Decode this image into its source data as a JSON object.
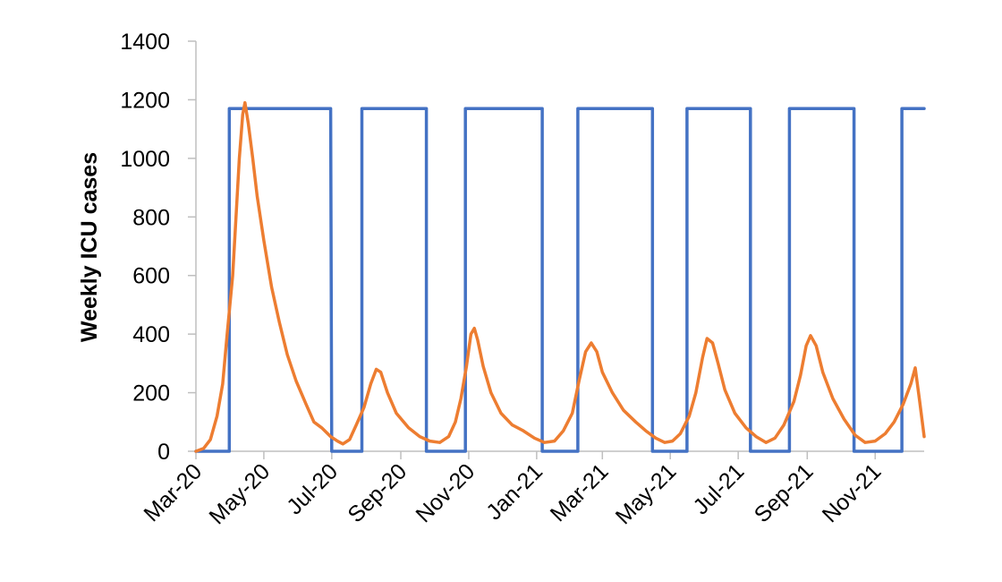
{
  "chart_data": {
    "type": "line",
    "title": "",
    "xlabel": "",
    "ylabel": "Weekly ICU cases",
    "ylim": [
      0,
      1400
    ],
    "yticks": [
      0,
      200,
      400,
      600,
      800,
      1000,
      1200,
      1400
    ],
    "xlim": [
      "2020-03-01",
      "2021-12-15"
    ],
    "xticks": [
      {
        "date": "2020-03-01",
        "label": "Mar-20"
      },
      {
        "date": "2020-05-01",
        "label": "May-20"
      },
      {
        "date": "2020-07-01",
        "label": "Jul-20"
      },
      {
        "date": "2020-09-01",
        "label": "Sep-20"
      },
      {
        "date": "2020-11-01",
        "label": "Nov-20"
      },
      {
        "date": "2021-01-01",
        "label": "Jan-21"
      },
      {
        "date": "2021-03-01",
        "label": "Mar-21"
      },
      {
        "date": "2021-05-01",
        "label": "May-21"
      },
      {
        "date": "2021-07-01",
        "label": "Jul-21"
      },
      {
        "date": "2021-09-01",
        "label": "Sep-21"
      },
      {
        "date": "2021-11-01",
        "label": "Nov-21"
      }
    ],
    "grid": false,
    "legend": "none",
    "series": [
      {
        "color": "#4472C4",
        "style": "step",
        "points": [
          [
            "2020-03-01",
            0
          ],
          [
            "2020-03-31",
            0
          ],
          [
            "2020-03-31",
            1170
          ],
          [
            "2020-06-30",
            1170
          ],
          [
            "2020-07-01",
            0
          ],
          [
            "2020-07-28",
            0
          ],
          [
            "2020-07-28",
            1170
          ],
          [
            "2020-09-24",
            1170
          ],
          [
            "2020-09-24",
            0
          ],
          [
            "2020-10-29",
            0
          ],
          [
            "2020-10-29",
            1170
          ],
          [
            "2021-01-06",
            1170
          ],
          [
            "2021-01-06",
            0
          ],
          [
            "2021-02-07",
            0
          ],
          [
            "2021-02-07",
            1170
          ],
          [
            "2021-04-15",
            1170
          ],
          [
            "2021-04-15",
            0
          ],
          [
            "2021-05-16",
            0
          ],
          [
            "2021-05-16",
            1170
          ],
          [
            "2021-07-12",
            1170
          ],
          [
            "2021-07-12",
            0
          ],
          [
            "2021-08-16",
            0
          ],
          [
            "2021-08-16",
            1170
          ],
          [
            "2021-10-13",
            1170
          ],
          [
            "2021-10-13",
            0
          ],
          [
            "2021-11-25",
            0
          ],
          [
            "2021-11-25",
            1170
          ],
          [
            "2021-12-15",
            1170
          ]
        ]
      },
      {
        "color": "#ED7D31",
        "style": "line",
        "points": [
          [
            "2020-03-01",
            0
          ],
          [
            "2020-03-08",
            10
          ],
          [
            "2020-03-14",
            40
          ],
          [
            "2020-03-20",
            120
          ],
          [
            "2020-03-25",
            230
          ],
          [
            "2020-03-29",
            400
          ],
          [
            "2020-04-03",
            600
          ],
          [
            "2020-04-06",
            800
          ],
          [
            "2020-04-09",
            1000
          ],
          [
            "2020-04-12",
            1150
          ],
          [
            "2020-04-14",
            1190
          ],
          [
            "2020-04-17",
            1120
          ],
          [
            "2020-04-21",
            1000
          ],
          [
            "2020-04-25",
            870
          ],
          [
            "2020-05-01",
            720
          ],
          [
            "2020-05-08",
            560
          ],
          [
            "2020-05-15",
            440
          ],
          [
            "2020-05-22",
            330
          ],
          [
            "2020-05-30",
            240
          ],
          [
            "2020-06-08",
            160
          ],
          [
            "2020-06-15",
            100
          ],
          [
            "2020-06-22",
            80
          ],
          [
            "2020-06-30",
            50
          ],
          [
            "2020-07-06",
            35
          ],
          [
            "2020-07-11",
            25
          ],
          [
            "2020-07-17",
            40
          ],
          [
            "2020-07-23",
            90
          ],
          [
            "2020-07-30",
            150
          ],
          [
            "2020-08-05",
            230
          ],
          [
            "2020-08-10",
            280
          ],
          [
            "2020-08-14",
            270
          ],
          [
            "2020-08-20",
            200
          ],
          [
            "2020-08-28",
            130
          ],
          [
            "2020-09-08",
            80
          ],
          [
            "2020-09-18",
            50
          ],
          [
            "2020-09-27",
            35
          ],
          [
            "2020-10-06",
            30
          ],
          [
            "2020-10-14",
            50
          ],
          [
            "2020-10-20",
            100
          ],
          [
            "2020-10-25",
            180
          ],
          [
            "2020-10-30",
            290
          ],
          [
            "2020-11-03",
            400
          ],
          [
            "2020-11-06",
            420
          ],
          [
            "2020-11-09",
            380
          ],
          [
            "2020-11-14",
            290
          ],
          [
            "2020-11-21",
            200
          ],
          [
            "2020-11-30",
            130
          ],
          [
            "2020-12-10",
            90
          ],
          [
            "2020-12-20",
            70
          ],
          [
            "2020-12-30",
            45
          ],
          [
            "2021-01-08",
            30
          ],
          [
            "2021-01-17",
            35
          ],
          [
            "2021-01-25",
            70
          ],
          [
            "2021-02-02",
            130
          ],
          [
            "2021-02-08",
            240
          ],
          [
            "2021-02-14",
            340
          ],
          [
            "2021-02-19",
            370
          ],
          [
            "2021-02-24",
            340
          ],
          [
            "2021-03-01",
            270
          ],
          [
            "2021-03-10",
            200
          ],
          [
            "2021-03-20",
            140
          ],
          [
            "2021-03-31",
            100
          ],
          [
            "2021-04-09",
            70
          ],
          [
            "2021-04-18",
            45
          ],
          [
            "2021-04-26",
            30
          ],
          [
            "2021-05-03",
            35
          ],
          [
            "2021-05-10",
            60
          ],
          [
            "2021-05-18",
            120
          ],
          [
            "2021-05-24",
            200
          ],
          [
            "2021-05-30",
            320
          ],
          [
            "2021-06-03",
            385
          ],
          [
            "2021-06-08",
            370
          ],
          [
            "2021-06-13",
            300
          ],
          [
            "2021-06-19",
            210
          ],
          [
            "2021-06-28",
            130
          ],
          [
            "2021-07-08",
            80
          ],
          [
            "2021-07-17",
            50
          ],
          [
            "2021-07-26",
            30
          ],
          [
            "2021-08-03",
            45
          ],
          [
            "2021-08-11",
            90
          ],
          [
            "2021-08-20",
            170
          ],
          [
            "2021-08-26",
            260
          ],
          [
            "2021-08-31",
            360
          ],
          [
            "2021-09-04",
            395
          ],
          [
            "2021-09-09",
            360
          ],
          [
            "2021-09-15",
            270
          ],
          [
            "2021-09-24",
            180
          ],
          [
            "2021-10-04",
            110
          ],
          [
            "2021-10-14",
            55
          ],
          [
            "2021-10-23",
            30
          ],
          [
            "2021-11-01",
            35
          ],
          [
            "2021-11-10",
            60
          ],
          [
            "2021-11-18",
            100
          ],
          [
            "2021-11-26",
            160
          ],
          [
            "2021-12-03",
            230
          ],
          [
            "2021-12-07",
            285
          ],
          [
            "2021-12-11",
            170
          ],
          [
            "2021-12-15",
            50
          ]
        ]
      }
    ]
  }
}
